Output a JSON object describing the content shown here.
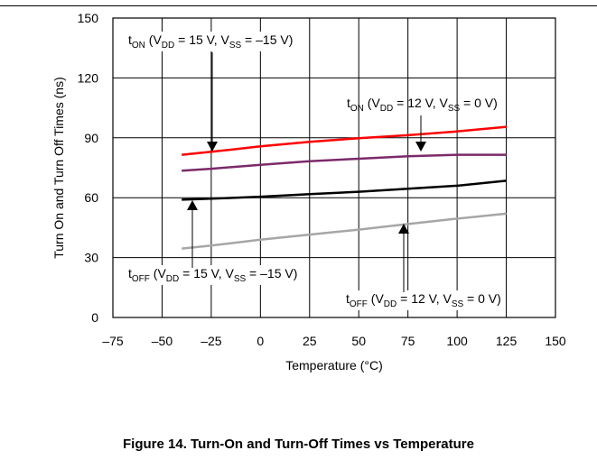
{
  "figure_caption": "Figure 14. Turn-On and Turn-Off Times vs Temperature",
  "chart_data": {
    "type": "line",
    "xlabel": "Temperature (°C)",
    "ylabel": "Turn On and Turn Off  Times (ns)",
    "xlim": [
      -75,
      150
    ],
    "ylim": [
      0,
      150
    ],
    "xticks": [
      "–75",
      "–50",
      "–25",
      "0",
      "25",
      "50",
      "75",
      "100",
      "125",
      "150"
    ],
    "yticks": [
      "0",
      "30",
      "60",
      "90",
      "120",
      "150"
    ],
    "grid": true,
    "x": [
      -40,
      -25,
      0,
      25,
      50,
      75,
      100,
      125
    ],
    "series": [
      {
        "color": "#ff0000",
        "values": [
          81.5,
          83.0,
          85.7,
          88.0,
          89.8,
          91.3,
          93.2,
          95.5
        ]
      },
      {
        "color": "#7b2a69",
        "values": [
          73.5,
          74.5,
          76.5,
          78.3,
          79.5,
          80.8,
          81.5,
          81.5
        ]
      },
      {
        "color": "#000000",
        "values": [
          59.0,
          59.5,
          60.5,
          61.8,
          63.0,
          64.5,
          66.0,
          68.5
        ]
      },
      {
        "color": "#a6a6a6",
        "values": [
          34.5,
          36.0,
          39.0,
          41.5,
          44.0,
          46.8,
          49.5,
          52.0
        ]
      }
    ],
    "annotations": [
      {
        "base": "t",
        "sub1": "ON",
        "mid1": " (V",
        "sub2": "DD",
        "mid2": " = 15 V, V",
        "sub3": "SS",
        "end": " = –15 V)"
      },
      {
        "base": "t",
        "sub1": "ON",
        "mid1": " (V",
        "sub2": "DD",
        "mid2": " = 12 V, V",
        "sub3": "SS",
        "end": " = 0 V)"
      },
      {
        "base": "t",
        "sub1": "OFF",
        "mid1": " (V",
        "sub2": "DD",
        "mid2": " = 15 V, V",
        "sub3": "SS",
        "end": " = –15 V)"
      },
      {
        "base": "t",
        "sub1": "OFF",
        "mid1": " (V",
        "sub2": "DD",
        "mid2": " = 12 V, V",
        "sub3": "SS",
        "end": " = 0 V)"
      }
    ]
  }
}
